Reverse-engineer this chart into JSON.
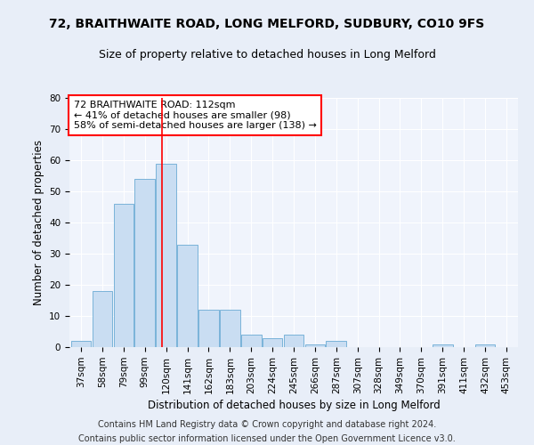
{
  "title1": "72, BRAITHWAITE ROAD, LONG MELFORD, SUDBURY, CO10 9FS",
  "title2": "Size of property relative to detached houses in Long Melford",
  "xlabel": "Distribution of detached houses by size in Long Melford",
  "ylabel": "Number of detached properties",
  "categories": [
    "37sqm",
    "58sqm",
    "79sqm",
    "99sqm",
    "120sqm",
    "141sqm",
    "162sqm",
    "183sqm",
    "203sqm",
    "224sqm",
    "245sqm",
    "266sqm",
    "287sqm",
    "307sqm",
    "328sqm",
    "349sqm",
    "370sqm",
    "391sqm",
    "411sqm",
    "432sqm",
    "453sqm"
  ],
  "values": [
    2,
    18,
    46,
    54,
    59,
    33,
    12,
    12,
    4,
    3,
    4,
    1,
    2,
    0,
    0,
    0,
    0,
    1,
    0,
    1,
    0
  ],
  "bar_color": "#c9ddf2",
  "bar_edge_color": "#6aaad4",
  "red_line_x": 3.82,
  "annotation_text": "72 BRAITHWAITE ROAD: 112sqm\n← 41% of detached houses are smaller (98)\n58% of semi-detached houses are larger (138) →",
  "annotation_box_color": "white",
  "annotation_box_edge_color": "red",
  "footnote1": "Contains HM Land Registry data © Crown copyright and database right 2024.",
  "footnote2": "Contains public sector information licensed under the Open Government Licence v3.0.",
  "ylim": [
    0,
    80
  ],
  "yticks": [
    0,
    10,
    20,
    30,
    40,
    50,
    60,
    70,
    80
  ],
  "bg_color": "#e8eef8",
  "plot_bg_color": "#f0f4fc",
  "grid_color": "#ffffff",
  "title1_fontsize": 10,
  "title2_fontsize": 9,
  "xlabel_fontsize": 8.5,
  "ylabel_fontsize": 8.5,
  "tick_fontsize": 7.5,
  "footnote_fontsize": 7,
  "annot_fontsize": 8
}
